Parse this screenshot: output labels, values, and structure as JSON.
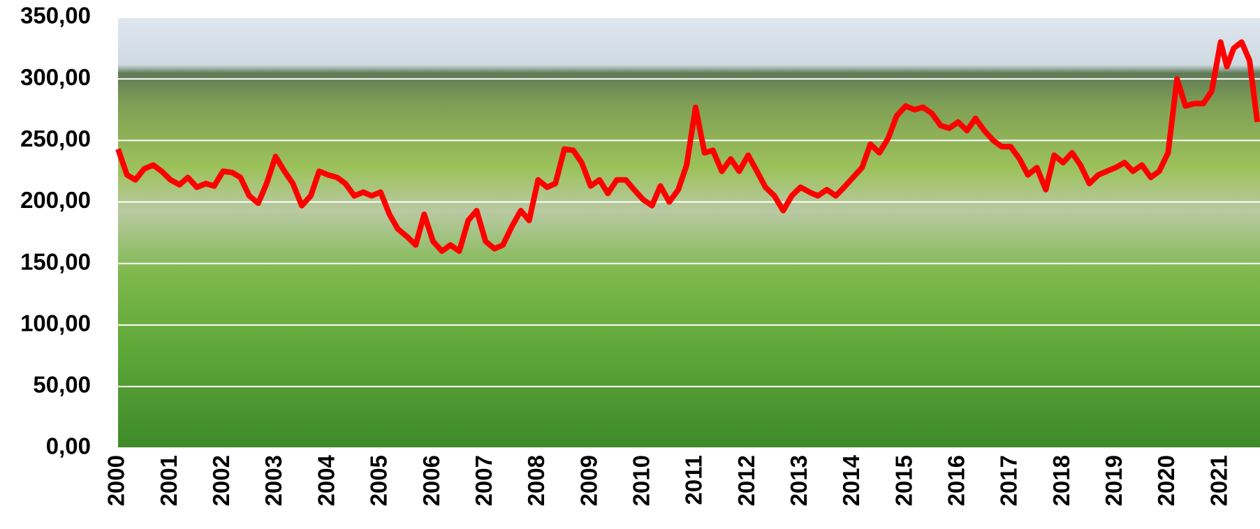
{
  "chart_data": {
    "type": "line",
    "x": [
      2000,
      2000.17,
      2000.33,
      2000.5,
      2000.67,
      2000.83,
      2001,
      2001.17,
      2001.33,
      2001.5,
      2001.67,
      2001.83,
      2002,
      2002.17,
      2002.33,
      2002.5,
      2002.67,
      2002.83,
      2003,
      2003.17,
      2003.33,
      2003.5,
      2003.67,
      2003.83,
      2004,
      2004.17,
      2004.33,
      2004.5,
      2004.67,
      2004.83,
      2005,
      2005.17,
      2005.33,
      2005.5,
      2005.67,
      2005.83,
      2006,
      2006.17,
      2006.33,
      2006.5,
      2006.67,
      2006.83,
      2007,
      2007.17,
      2007.33,
      2007.5,
      2007.67,
      2007.83,
      2008,
      2008.17,
      2008.33,
      2008.5,
      2008.67,
      2008.83,
      2009,
      2009.17,
      2009.33,
      2009.5,
      2009.67,
      2009.83,
      2010,
      2010.17,
      2010.33,
      2010.5,
      2010.67,
      2010.83,
      2011,
      2011.17,
      2011.33,
      2011.5,
      2011.67,
      2011.83,
      2012,
      2012.17,
      2012.33,
      2012.5,
      2012.67,
      2012.83,
      2013,
      2013.17,
      2013.33,
      2013.5,
      2013.67,
      2013.83,
      2014,
      2014.17,
      2014.33,
      2014.5,
      2014.67,
      2014.83,
      2015,
      2015.17,
      2015.33,
      2015.5,
      2015.67,
      2015.83,
      2016,
      2016.17,
      2016.33,
      2016.5,
      2016.67,
      2016.83,
      2017,
      2017.17,
      2017.33,
      2017.5,
      2017.67,
      2017.83,
      2018,
      2018.17,
      2018.33,
      2018.5,
      2018.67,
      2018.83,
      2019,
      2019.17,
      2019.33,
      2019.5,
      2019.67,
      2019.83,
      2020,
      2020.17,
      2020.33,
      2020.5,
      2020.67,
      2020.83,
      2021,
      2021.12,
      2021.25,
      2021.4,
      2021.55,
      2021.7
    ],
    "series": [
      {
        "color": "#ff0000",
        "values": [
          243,
          222,
          218,
          227,
          230,
          225,
          218,
          214,
          220,
          212,
          215,
          213,
          225,
          224,
          220,
          205,
          199,
          215,
          237,
          225,
          215,
          197,
          205,
          225,
          222,
          220,
          215,
          205,
          208,
          205,
          208,
          190,
          178,
          172,
          165,
          190,
          168,
          160,
          165,
          160,
          185,
          193,
          168,
          162,
          165,
          180,
          193,
          185,
          218,
          212,
          215,
          243,
          242,
          232,
          213,
          218,
          207,
          218,
          218,
          210,
          202,
          197,
          213,
          200,
          210,
          230,
          277,
          240,
          242,
          225,
          235,
          225,
          238,
          225,
          212,
          205,
          193,
          205,
          212,
          208,
          205,
          210,
          205,
          212,
          220,
          228,
          247,
          240,
          252,
          270,
          278,
          275,
          277,
          272,
          262,
          260,
          265,
          258,
          268,
          258,
          250,
          245,
          245,
          235,
          222,
          228,
          210,
          238,
          232,
          240,
          230,
          215,
          222,
          225,
          228,
          232,
          225,
          230,
          220,
          225,
          240,
          300,
          278,
          280,
          280,
          290,
          330,
          310,
          325,
          330,
          315,
          265
        ]
      }
    ],
    "xlim": [
      2000,
      2021.75
    ],
    "xticks": [
      2000,
      2001,
      2002,
      2003,
      2004,
      2005,
      2006,
      2007,
      2008,
      2009,
      2010,
      2011,
      2012,
      2013,
      2014,
      2015,
      2016,
      2017,
      2018,
      2019,
      2020,
      2021
    ],
    "ylim": [
      0,
      350
    ],
    "yticks": [
      {
        "value": 0,
        "label": "0,00"
      },
      {
        "value": 50,
        "label": "50,00"
      },
      {
        "value": 100,
        "label": "100,00"
      },
      {
        "value": 150,
        "label": "150,00"
      },
      {
        "value": 200,
        "label": "200,00"
      },
      {
        "value": 250,
        "label": "250,00"
      },
      {
        "value": 300,
        "label": "300,00"
      },
      {
        "value": 350,
        "label": "350,00"
      }
    ],
    "grid": true
  }
}
